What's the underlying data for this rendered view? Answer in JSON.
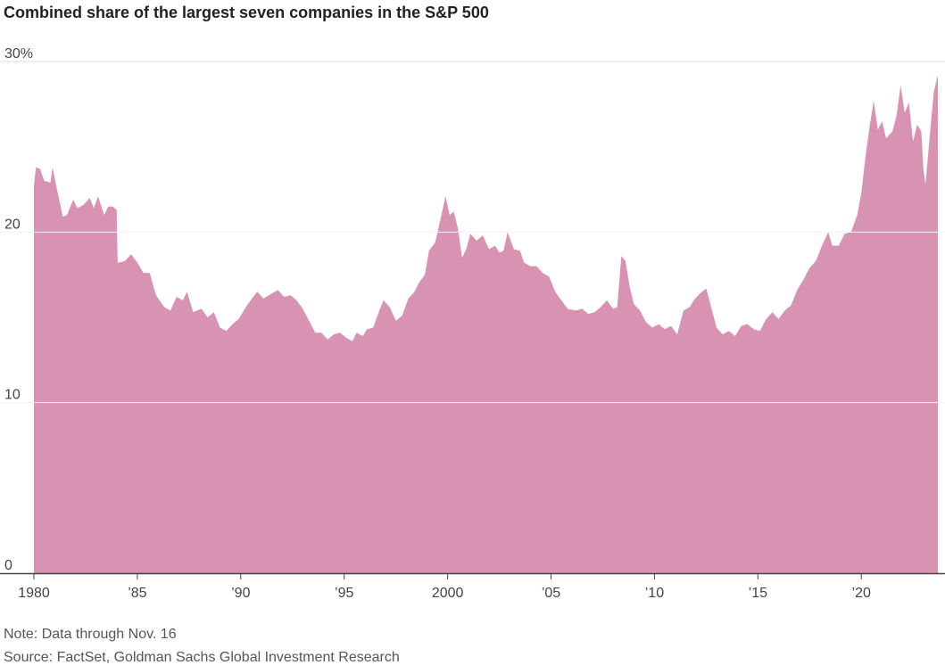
{
  "chart_data": {
    "type": "area",
    "title": "Combined share of the largest seven companies in the S&P 500",
    "notes": [
      "Note: Data through Nov. 16",
      "Source: FactSet, Goldman Sachs Global Investment Research"
    ],
    "color": "#d892b2",
    "xlim": [
      1980,
      2023.7
    ],
    "ylim": [
      0,
      30
    ],
    "yticks": [
      0,
      10,
      20,
      {
        "value": 30,
        "label": "30%"
      }
    ],
    "xticks": [
      {
        "value": 1980,
        "label": "1980"
      },
      {
        "value": 1985,
        "label": "’85"
      },
      {
        "value": 1990,
        "label": "’90"
      },
      {
        "value": 1995,
        "label": "’95"
      },
      {
        "value": 2000,
        "label": "2000"
      },
      {
        "value": 2005,
        "label": "’05"
      },
      {
        "value": 2010,
        "label": "’10"
      },
      {
        "value": 2015,
        "label": "’15"
      },
      {
        "value": 2020,
        "label": "’20"
      }
    ],
    "grid": true,
    "x": [
      1980.0,
      1980.1,
      1980.3,
      1980.5,
      1980.8,
      1980.9,
      1981.1,
      1981.4,
      1981.6,
      1981.9,
      1982.1,
      1982.4,
      1982.7,
      1982.9,
      1983.1,
      1983.4,
      1983.6,
      1983.8,
      1984.0,
      1984.05,
      1984.4,
      1984.7,
      1985.0,
      1985.3,
      1985.6,
      1985.9,
      1986.3,
      1986.6,
      1986.9,
      1987.2,
      1987.4,
      1987.7,
      1988.1,
      1988.4,
      1988.7,
      1989.0,
      1989.3,
      1989.6,
      1989.9,
      1990.3,
      1990.6,
      1990.8,
      1991.1,
      1991.5,
      1991.8,
      1992.1,
      1992.4,
      1992.7,
      1993.0,
      1993.3,
      1993.6,
      1993.9,
      1994.2,
      1994.5,
      1994.8,
      1995.1,
      1995.4,
      1995.6,
      1995.9,
      1996.1,
      1996.4,
      1996.7,
      1996.9,
      1997.2,
      1997.5,
      1997.8,
      1998.1,
      1998.4,
      1998.6,
      1998.9,
      1999.1,
      1999.4,
      1999.7,
      1999.9,
      2000.1,
      2000.3,
      2000.5,
      2000.7,
      2000.9,
      2001.1,
      2001.4,
      2001.7,
      2002.0,
      2002.3,
      2002.5,
      2002.7,
      2002.9,
      2003.2,
      2003.5,
      2003.7,
      2004.0,
      2004.3,
      2004.6,
      2004.9,
      2005.2,
      2005.5,
      2005.8,
      2006.2,
      2006.5,
      2006.8,
      2007.1,
      2007.4,
      2007.7,
      2008.0,
      2008.2,
      2008.4,
      2008.6,
      2008.8,
      2009.0,
      2009.3,
      2009.6,
      2009.9,
      2010.2,
      2010.5,
      2010.8,
      2011.1,
      2011.4,
      2011.7,
      2011.9,
      2012.2,
      2012.5,
      2012.7,
      2013.0,
      2013.3,
      2013.6,
      2013.9,
      2014.2,
      2014.5,
      2014.8,
      2015.1,
      2015.4,
      2015.7,
      2016.0,
      2016.3,
      2016.6,
      2016.9,
      2017.2,
      2017.5,
      2017.8,
      2018.1,
      2018.4,
      2018.6,
      2018.9,
      2019.2,
      2019.5,
      2019.8,
      2020.0,
      2020.2,
      2020.4,
      2020.6,
      2020.8,
      2021.0,
      2021.2,
      2021.5,
      2021.7,
      2021.9,
      2022.1,
      2022.3,
      2022.5,
      2022.7,
      2022.9,
      2023.0,
      2023.1,
      2023.3,
      2023.5,
      2023.7
    ],
    "values": [
      22.7,
      23.8,
      23.7,
      23.0,
      22.9,
      23.8,
      22.6,
      20.9,
      21.0,
      21.9,
      21.4,
      21.6,
      22.0,
      21.4,
      22.1,
      21.0,
      21.5,
      21.5,
      21.3,
      18.2,
      18.3,
      18.7,
      18.2,
      17.6,
      17.6,
      16.3,
      15.6,
      15.4,
      16.2,
      16.0,
      16.5,
      15.3,
      15.5,
      15.0,
      15.3,
      14.4,
      14.2,
      14.6,
      14.9,
      15.7,
      16.2,
      16.5,
      16.1,
      16.4,
      16.6,
      16.2,
      16.3,
      16.0,
      15.5,
      14.8,
      14.1,
      14.1,
      13.7,
      14.0,
      14.1,
      13.8,
      13.6,
      14.1,
      13.9,
      14.3,
      14.4,
      15.4,
      16.0,
      15.6,
      14.8,
      15.1,
      16.1,
      16.5,
      17.0,
      17.5,
      18.9,
      19.4,
      21.0,
      22.1,
      21.0,
      21.2,
      20.2,
      18.5,
      19.0,
      19.9,
      19.5,
      19.8,
      19.0,
      19.2,
      18.8,
      18.9,
      20.0,
      19.0,
      18.9,
      18.2,
      18.0,
      18.0,
      17.6,
      17.4,
      16.5,
      16.0,
      15.5,
      15.4,
      15.5,
      15.2,
      15.3,
      15.6,
      16.0,
      15.5,
      15.6,
      18.6,
      18.3,
      16.8,
      15.8,
      15.4,
      14.7,
      14.4,
      14.6,
      14.3,
      14.5,
      14.0,
      15.4,
      15.6,
      16.0,
      16.4,
      16.7,
      15.8,
      14.4,
      14.0,
      14.2,
      13.9,
      14.5,
      14.6,
      14.3,
      14.2,
      14.9,
      15.3,
      14.9,
      15.4,
      15.7,
      16.6,
      17.2,
      17.9,
      18.3,
      19.2,
      20.0,
      19.2,
      19.2,
      19.9,
      20.0,
      21.0,
      22.3,
      24.4,
      26.2,
      27.7,
      26.0,
      26.5,
      25.5,
      25.9,
      26.8,
      28.6,
      27.0,
      27.6,
      25.3,
      26.3,
      25.9,
      23.7,
      22.8,
      25.5,
      28.2,
      29.2
    ]
  }
}
